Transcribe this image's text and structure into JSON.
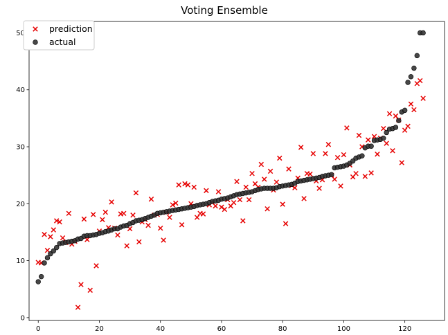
{
  "chart_data": {
    "type": "scatter",
    "title": "Voting Ensemble",
    "xlabel": "",
    "ylabel": "",
    "xlim": [
      -3,
      133
    ],
    "ylim": [
      -0.5,
      52
    ],
    "xticks": [
      0,
      20,
      40,
      60,
      80,
      100,
      120
    ],
    "yticks": [
      0,
      10,
      20,
      30,
      40,
      50
    ],
    "grid": false,
    "legend_position": "top-left",
    "series": [
      {
        "name": "prediction",
        "marker": "x",
        "color": "#e60000",
        "points": [
          [
            0,
            9.7
          ],
          [
            1,
            9.6
          ],
          [
            2,
            14.6
          ],
          [
            3,
            11.8
          ],
          [
            4,
            14.2
          ],
          [
            5,
            15.4
          ],
          [
            6,
            17.0
          ],
          [
            7,
            16.8
          ],
          [
            8,
            14.0
          ],
          [
            9,
            13.2
          ],
          [
            10,
            18.3
          ],
          [
            11,
            12.9
          ],
          [
            12,
            13.4
          ],
          [
            13,
            1.8
          ],
          [
            14,
            5.8
          ],
          [
            15,
            17.3
          ],
          [
            16,
            13.7
          ],
          [
            17,
            4.8
          ],
          [
            18,
            18.1
          ],
          [
            19,
            9.1
          ],
          [
            20,
            15.2
          ],
          [
            21,
            17.2
          ],
          [
            22,
            18.5
          ],
          [
            23,
            15.8
          ],
          [
            24,
            20.3
          ],
          [
            25,
            15.7
          ],
          [
            26,
            14.5
          ],
          [
            27,
            18.2
          ],
          [
            28,
            18.3
          ],
          [
            29,
            12.6
          ],
          [
            30,
            15.6
          ],
          [
            31,
            18.0
          ],
          [
            32,
            21.9
          ],
          [
            33,
            13.3
          ],
          [
            34,
            16.8
          ],
          [
            35,
            17.2
          ],
          [
            36,
            16.2
          ],
          [
            37,
            20.8
          ],
          [
            38,
            18.0
          ],
          [
            39,
            18.1
          ],
          [
            40,
            15.7
          ],
          [
            41,
            13.6
          ],
          [
            42,
            18.5
          ],
          [
            43,
            17.6
          ],
          [
            44,
            19.8
          ],
          [
            45,
            20.1
          ],
          [
            46,
            23.3
          ],
          [
            47,
            16.3
          ],
          [
            48,
            23.5
          ],
          [
            49,
            23.3
          ],
          [
            50,
            20.0
          ],
          [
            51,
            22.9
          ],
          [
            52,
            17.6
          ],
          [
            53,
            18.3
          ],
          [
            54,
            18.2
          ],
          [
            55,
            22.3
          ],
          [
            56,
            19.8
          ],
          [
            57,
            20.2
          ],
          [
            58,
            19.6
          ],
          [
            59,
            22.1
          ],
          [
            60,
            19.4
          ],
          [
            61,
            19.0
          ],
          [
            62,
            20.7
          ],
          [
            63,
            19.6
          ],
          [
            64,
            20.2
          ],
          [
            65,
            23.9
          ],
          [
            66,
            20.7
          ],
          [
            67,
            17.0
          ],
          [
            68,
            22.9
          ],
          [
            69,
            20.7
          ],
          [
            70,
            25.3
          ],
          [
            71,
            23.5
          ],
          [
            72,
            22.9
          ],
          [
            73,
            26.9
          ],
          [
            74,
            24.3
          ],
          [
            75,
            19.1
          ],
          [
            76,
            25.7
          ],
          [
            77,
            22.4
          ],
          [
            78,
            23.8
          ],
          [
            79,
            28.0
          ],
          [
            80,
            19.9
          ],
          [
            81,
            16.5
          ],
          [
            82,
            26.1
          ],
          [
            83,
            23.2
          ],
          [
            84,
            22.8
          ],
          [
            85,
            24.5
          ],
          [
            86,
            29.9
          ],
          [
            87,
            20.9
          ],
          [
            88,
            25.3
          ],
          [
            89,
            25.2
          ],
          [
            90,
            28.8
          ],
          [
            91,
            24.0
          ],
          [
            92,
            22.7
          ],
          [
            93,
            24.2
          ],
          [
            94,
            28.8
          ],
          [
            95,
            30.4
          ],
          [
            96,
            25.0
          ],
          [
            97,
            24.3
          ],
          [
            98,
            28.1
          ],
          [
            99,
            23.1
          ],
          [
            100,
            28.6
          ],
          [
            101,
            33.3
          ],
          [
            102,
            26.8
          ],
          [
            103,
            24.7
          ],
          [
            104,
            25.3
          ],
          [
            105,
            32.0
          ],
          [
            106,
            30.0
          ],
          [
            107,
            24.8
          ],
          [
            108,
            31.2
          ],
          [
            109,
            25.4
          ],
          [
            110,
            31.8
          ],
          [
            111,
            28.7
          ],
          [
            112,
            31.5
          ],
          [
            113,
            33.2
          ],
          [
            114,
            30.6
          ],
          [
            115,
            35.8
          ],
          [
            116,
            29.3
          ],
          [
            117,
            35.4
          ],
          [
            118,
            34.7
          ],
          [
            119,
            27.2
          ],
          [
            120,
            32.9
          ],
          [
            121,
            33.6
          ],
          [
            122,
            37.5
          ],
          [
            123,
            36.5
          ],
          [
            124,
            41.1
          ],
          [
            125,
            41.6
          ],
          [
            126,
            38.5
          ]
        ]
      },
      {
        "name": "actual",
        "marker": "o",
        "color": "#333333",
        "points": [
          [
            0,
            6.3
          ],
          [
            1,
            7.2
          ],
          [
            2,
            9.6
          ],
          [
            3,
            10.5
          ],
          [
            4,
            11.2
          ],
          [
            5,
            11.7
          ],
          [
            6,
            12.3
          ],
          [
            7,
            13.0
          ],
          [
            8,
            13.1
          ],
          [
            9,
            13.2
          ],
          [
            10,
            13.3
          ],
          [
            11,
            13.4
          ],
          [
            12,
            13.5
          ],
          [
            13,
            13.8
          ],
          [
            14,
            13.9
          ],
          [
            15,
            14.3
          ],
          [
            16,
            14.4
          ],
          [
            17,
            14.4
          ],
          [
            18,
            14.5
          ],
          [
            19,
            14.6
          ],
          [
            20,
            14.8
          ],
          [
            21,
            14.9
          ],
          [
            22,
            15.1
          ],
          [
            23,
            15.2
          ],
          [
            24,
            15.4
          ],
          [
            25,
            15.6
          ],
          [
            26,
            15.6
          ],
          [
            27,
            15.9
          ],
          [
            28,
            16.1
          ],
          [
            29,
            16.2
          ],
          [
            30,
            16.5
          ],
          [
            31,
            16.7
          ],
          [
            32,
            17.0
          ],
          [
            33,
            17.1
          ],
          [
            34,
            17.2
          ],
          [
            35,
            17.4
          ],
          [
            36,
            17.6
          ],
          [
            37,
            17.8
          ],
          [
            38,
            18.0
          ],
          [
            39,
            18.3
          ],
          [
            40,
            18.4
          ],
          [
            41,
            18.5
          ],
          [
            42,
            18.6
          ],
          [
            43,
            18.7
          ],
          [
            44,
            18.8
          ],
          [
            45,
            18.9
          ],
          [
            46,
            19.0
          ],
          [
            47,
            19.1
          ],
          [
            48,
            19.2
          ],
          [
            49,
            19.3
          ],
          [
            50,
            19.4
          ],
          [
            51,
            19.5
          ],
          [
            52,
            19.7
          ],
          [
            53,
            19.8
          ],
          [
            54,
            19.9
          ],
          [
            55,
            20.0
          ],
          [
            56,
            20.2
          ],
          [
            57,
            20.4
          ],
          [
            58,
            20.5
          ],
          [
            59,
            20.6
          ],
          [
            60,
            20.8
          ],
          [
            61,
            20.9
          ],
          [
            62,
            21.0
          ],
          [
            63,
            21.2
          ],
          [
            64,
            21.4
          ],
          [
            65,
            21.6
          ],
          [
            66,
            21.7
          ],
          [
            67,
            21.8
          ],
          [
            68,
            21.9
          ],
          [
            69,
            22.0
          ],
          [
            70,
            22.1
          ],
          [
            71,
            22.3
          ],
          [
            72,
            22.5
          ],
          [
            73,
            22.6
          ],
          [
            74,
            22.7
          ],
          [
            75,
            22.7
          ],
          [
            76,
            22.7
          ],
          [
            77,
            22.7
          ],
          [
            78,
            22.8
          ],
          [
            79,
            23.0
          ],
          [
            80,
            23.1
          ],
          [
            81,
            23.2
          ],
          [
            82,
            23.3
          ],
          [
            83,
            23.4
          ],
          [
            84,
            23.6
          ],
          [
            85,
            23.9
          ],
          [
            86,
            24.0
          ],
          [
            87,
            24.1
          ],
          [
            88,
            24.2
          ],
          [
            89,
            24.3
          ],
          [
            90,
            24.4
          ],
          [
            91,
            24.5
          ],
          [
            92,
            24.6
          ],
          [
            93,
            24.8
          ],
          [
            94,
            24.9
          ],
          [
            95,
            25.0
          ],
          [
            96,
            25.1
          ],
          [
            97,
            26.3
          ],
          [
            98,
            26.4
          ],
          [
            99,
            26.5
          ],
          [
            100,
            26.6
          ],
          [
            101,
            26.8
          ],
          [
            102,
            27.1
          ],
          [
            103,
            27.5
          ],
          [
            104,
            28.0
          ],
          [
            105,
            28.2
          ],
          [
            106,
            28.4
          ],
          [
            107,
            29.8
          ],
          [
            108,
            30.1
          ],
          [
            109,
            30.1
          ],
          [
            110,
            31.1
          ],
          [
            111,
            31.2
          ],
          [
            112,
            31.3
          ],
          [
            113,
            31.5
          ],
          [
            114,
            32.5
          ],
          [
            115,
            33.1
          ],
          [
            116,
            33.2
          ],
          [
            117,
            33.4
          ],
          [
            118,
            34.6
          ],
          [
            119,
            36.1
          ],
          [
            120,
            36.4
          ],
          [
            121,
            41.3
          ],
          [
            122,
            42.3
          ],
          [
            123,
            43.8
          ],
          [
            124,
            46.0
          ],
          [
            125,
            50.0
          ],
          [
            126,
            50.0
          ]
        ]
      }
    ]
  }
}
